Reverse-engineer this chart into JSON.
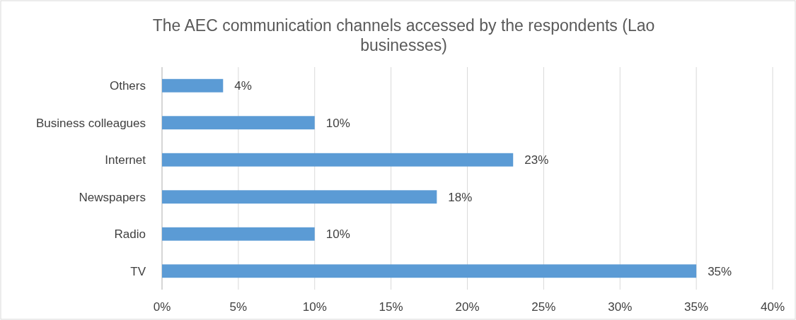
{
  "chart_data": {
    "type": "bar",
    "orientation": "horizontal",
    "title": "The AEC communication channels accessed by the respondents (Lao businesses)",
    "categories": [
      "Others",
      "Business colleagues",
      "Internet",
      "Newspapers",
      "Radio",
      "TV"
    ],
    "values": [
      4,
      10,
      23,
      18,
      10,
      35
    ],
    "value_labels": [
      "4%",
      "10%",
      "23%",
      "18%",
      "10%",
      "35%"
    ],
    "color": "#5b9bd5",
    "xlim": [
      0,
      40
    ],
    "xticks": [
      {
        "value": 0,
        "label": "0%"
      },
      {
        "value": 5,
        "label": "5%"
      },
      {
        "value": 10,
        "label": "10%"
      },
      {
        "value": 15,
        "label": "15%"
      },
      {
        "value": 20,
        "label": "20%"
      },
      {
        "value": 25,
        "label": "25%"
      },
      {
        "value": 30,
        "label": "30%"
      },
      {
        "value": 35,
        "label": "35%"
      },
      {
        "value": 40,
        "label": "40%"
      }
    ],
    "grid": "x"
  }
}
